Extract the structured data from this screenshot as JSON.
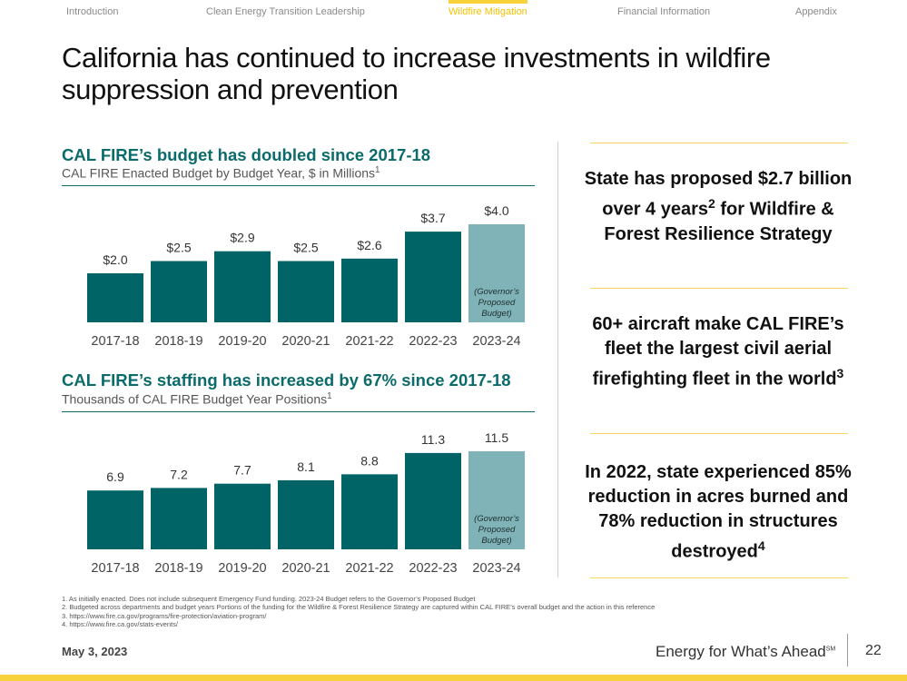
{
  "nav": {
    "items": [
      {
        "label": "Introduction",
        "active": false
      },
      {
        "label": "Clean Energy Transition Leadership",
        "active": false
      },
      {
        "label": "Wildfire Mitigation",
        "active": true
      },
      {
        "label": "Financial Information",
        "active": false
      },
      {
        "label": "Appendix",
        "active": false
      }
    ]
  },
  "title": "California has continued to increase investments in wildfire suppression and prevention",
  "colors": {
    "bar": "#006366",
    "bar_proposed": "#7fb3b7",
    "accent": "#0b6b6b",
    "nav_active": "#f2c200",
    "gold": "#f7d23a"
  },
  "chart_data": [
    {
      "type": "bar",
      "title": "CAL FIRE’s budget has doubled since 2017-18",
      "subtitle": "CAL FIRE Enacted Budget by Budget Year, $ in Millions",
      "subtitle_footnote": "1",
      "categories": [
        "2017-18",
        "2018-19",
        "2019-20",
        "2020-21",
        "2021-22",
        "2022-23",
        "2023-24"
      ],
      "values": [
        2.0,
        2.5,
        2.9,
        2.5,
        2.6,
        3.7,
        4.0
      ],
      "value_labels": [
        "$2.0",
        "$2.5",
        "$2.9",
        "$2.5",
        "$2.6",
        "$3.7",
        "$4.0"
      ],
      "highlight_index": 6,
      "highlight_note": [
        "(Governor’s",
        "Proposed",
        "Budget)"
      ],
      "ylim": [
        0,
        4.0
      ]
    },
    {
      "type": "bar",
      "title": "CAL FIRE’s staffing has increased by 67% since 2017-18",
      "subtitle": "Thousands of CAL FIRE Budget Year Positions",
      "subtitle_footnote": "1",
      "categories": [
        "2017-18",
        "2018-19",
        "2019-20",
        "2020-21",
        "2021-22",
        "2022-23",
        "2023-24"
      ],
      "values": [
        6.9,
        7.2,
        7.7,
        8.1,
        8.8,
        11.3,
        11.5
      ],
      "value_labels": [
        "6.9",
        "7.2",
        "7.7",
        "8.1",
        "8.8",
        "11.3",
        "11.5"
      ],
      "highlight_index": 6,
      "highlight_note": [
        "(Governor’s",
        "Proposed",
        "Budget)"
      ],
      "ylim": [
        0,
        11.5
      ]
    }
  ],
  "callouts": [
    {
      "text": "State has proposed $2.7 billion over 4 years",
      "sup": "2",
      "rest": " for Wildfire & Forest Resilience Strategy"
    },
    {
      "text": "60+ aircraft make CAL FIRE’s fleet the largest civil aerial firefighting fleet in the world",
      "sup": "3",
      "rest": ""
    },
    {
      "text": "In 2022, state experienced 85% reduction in acres burned and 78% reduction in structures destroyed",
      "sup": "4",
      "rest": ""
    }
  ],
  "footnotes": [
    "1.  As initially enacted. Does not include subsequent Emergency Fund funding. 2023-24 Budget refers to the Governor’s Proposed Budget",
    "2.  Budgeted across departments and budget years Portions of the funding for the Wildfire & Forest Resilience Strategy are captured within CAL FIRE’s overall budget and the action in this reference",
    "3.  https://www.fire.ca.gov/programs/fire-protection/aviation-program/",
    "4.  https://www.fire.ca.gov/stats-events/"
  ],
  "footer": {
    "date": "May 3, 2023",
    "tagline": "Energy for What’s Ahead",
    "tagline_mark": "SM",
    "page_number": "22"
  }
}
